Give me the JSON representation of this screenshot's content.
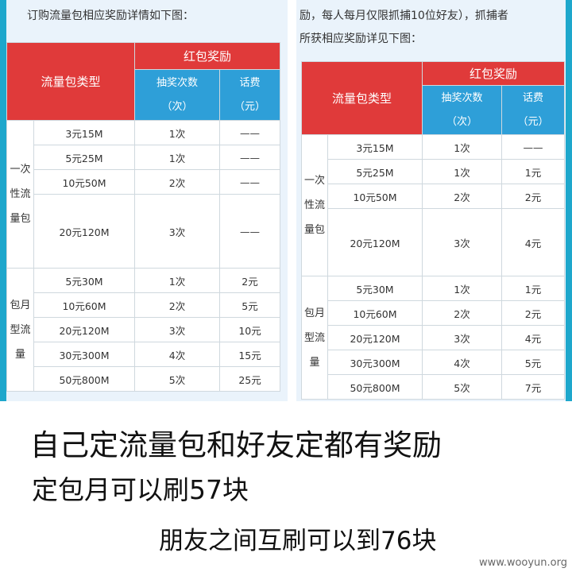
{
  "left": {
    "heading": "订购流量包相应奖励详情如下图：",
    "header": {
      "type": "流量包类型",
      "reward": "红包奖励",
      "draws": "抽奖次数",
      "draws_unit": "（次）",
      "fee": "话费",
      "fee_unit": "（元）"
    },
    "group_once": "一次性流量包",
    "group_monthly": "包月型流量",
    "rows_once": [
      {
        "pkg": "3元15M",
        "draws": "1次",
        "fee": "——"
      },
      {
        "pkg": "5元25M",
        "draws": "1次",
        "fee": "——"
      },
      {
        "pkg": "10元50M",
        "draws": "2次",
        "fee": "——"
      },
      {
        "pkg": "20元120M",
        "draws": "3次",
        "fee": "——"
      }
    ],
    "rows_monthly": [
      {
        "pkg": "5元30M",
        "draws": "1次",
        "fee": "2元"
      },
      {
        "pkg": "10元60M",
        "draws": "2次",
        "fee": "5元"
      },
      {
        "pkg": "20元120M",
        "draws": "3次",
        "fee": "10元"
      },
      {
        "pkg": "30元300M",
        "draws": "4次",
        "fee": "15元"
      },
      {
        "pkg": "50元800M",
        "draws": "5次",
        "fee": "25元"
      }
    ]
  },
  "right": {
    "heading_line1": "励，每人每月仅限抓捕10位好友），抓捕者",
    "heading_line2": "所获相应奖励详见下图：",
    "header": {
      "type": "流量包类型",
      "reward": "红包奖励",
      "draws": "抽奖次数",
      "draws_unit": "（次）",
      "fee": "话费",
      "fee_unit": "（元）"
    },
    "group_once": "一次性流量包",
    "group_monthly": "包月型流量",
    "rows_once": [
      {
        "pkg": "3元15M",
        "draws": "1次",
        "fee": "——"
      },
      {
        "pkg": "5元25M",
        "draws": "1次",
        "fee": "1元"
      },
      {
        "pkg": "10元50M",
        "draws": "2次",
        "fee": "2元"
      },
      {
        "pkg": "20元120M",
        "draws": "3次",
        "fee": "4元"
      }
    ],
    "rows_monthly": [
      {
        "pkg": "5元30M",
        "draws": "1次",
        "fee": "1元"
      },
      {
        "pkg": "10元60M",
        "draws": "2次",
        "fee": "2元"
      },
      {
        "pkg": "20元120M",
        "draws": "3次",
        "fee": "4元"
      },
      {
        "pkg": "30元300M",
        "draws": "4次",
        "fee": "5元"
      },
      {
        "pkg": "50元800M",
        "draws": "5次",
        "fee": "7元"
      }
    ]
  },
  "captions": {
    "line1": "自己定流量包和好友定都有奖励",
    "line2": "定包月可以刷57块",
    "line3": "朋友之间互刷可以到76块"
  },
  "watermark": "www.wooyun.org"
}
